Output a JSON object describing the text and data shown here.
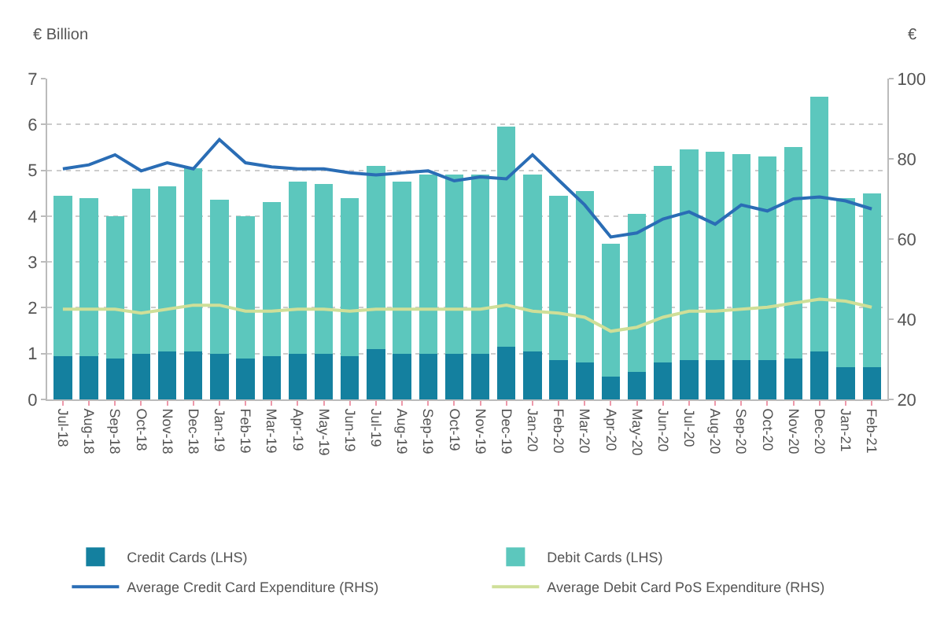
{
  "chart_data": {
    "type": "bar",
    "stacked": true,
    "ylabel": "€ Billion",
    "y2label": "€",
    "categories": [
      "Jul-18",
      "Aug-18",
      "Sep-18",
      "Oct-18",
      "Nov-18",
      "Dec-18",
      "Jan-19",
      "Feb-19",
      "Mar-19",
      "Apr-19",
      "May-19",
      "Jun-19",
      "Jul-19",
      "Aug-19",
      "Sep-19",
      "Oct-19",
      "Nov-19",
      "Dec-19",
      "Jan-20",
      "Feb-20",
      "Mar-20",
      "Apr-20",
      "May-20",
      "Jun-20",
      "Jul-20",
      "Aug-20",
      "Sep-20",
      "Oct-20",
      "Nov-20",
      "Dec-20",
      "Jan-21",
      "Feb-21"
    ],
    "series": [
      {
        "name": "Credit Cards (LHS)",
        "color": "#14809f",
        "values": [
          0.95,
          0.95,
          0.9,
          1.0,
          1.05,
          1.05,
          1.0,
          0.9,
          0.95,
          1.0,
          1.0,
          0.95,
          1.1,
          1.0,
          1.0,
          1.0,
          1.0,
          1.15,
          1.05,
          0.85,
          0.8,
          0.5,
          0.6,
          0.8,
          0.85,
          0.85,
          0.85,
          0.85,
          0.9,
          1.05,
          0.7,
          0.7
        ]
      },
      {
        "name": "Debit Cards (LHS)",
        "color": "#5cc7bd",
        "values": [
          3.5,
          3.45,
          3.1,
          3.6,
          3.6,
          4.0,
          3.35,
          3.1,
          3.35,
          3.75,
          3.7,
          3.45,
          4.0,
          3.75,
          3.9,
          3.9,
          3.9,
          4.8,
          3.85,
          3.6,
          3.75,
          2.9,
          3.45,
          4.3,
          4.6,
          4.55,
          4.5,
          4.45,
          4.6,
          5.55,
          3.7,
          3.8
        ]
      },
      {
        "name": "Average Credit Card Expenditure (RHS)",
        "type": "line",
        "axis": "y2",
        "color": "#2a6db5",
        "values": [
          77.5,
          78.5,
          81,
          77,
          79,
          77.5,
          84.8,
          79,
          78,
          77.5,
          77.5,
          76.5,
          76,
          76.5,
          77,
          74.5,
          75.5,
          75,
          81,
          74.7,
          68.5,
          60.5,
          61.5,
          65,
          66.8,
          63.7,
          68.5,
          67,
          70,
          70.5,
          69.5,
          67.5
        ]
      },
      {
        "name": "Average Debit Card PoS Expenditure (RHS)",
        "type": "line",
        "axis": "y2",
        "color": "#cfdf98",
        "values": [
          42.5,
          42.5,
          42.5,
          41.5,
          42.5,
          43.5,
          43.5,
          42,
          42,
          42.5,
          42.5,
          42,
          42.5,
          42.5,
          42.5,
          42.5,
          42.5,
          43.5,
          42,
          41.5,
          40.5,
          37,
          38,
          40.5,
          42,
          42,
          42.5,
          43,
          44,
          45,
          44.5,
          43
        ]
      }
    ],
    "ylim": [
      0,
      7
    ],
    "yticks": [
      0,
      1,
      2,
      3,
      4,
      5,
      6,
      7
    ],
    "y2lim": [
      20,
      100
    ],
    "y2ticks": [
      20,
      40,
      60,
      80,
      100
    ],
    "grid": "y",
    "legend": "bottom",
    "marker": "none",
    "line_style": "solid"
  }
}
